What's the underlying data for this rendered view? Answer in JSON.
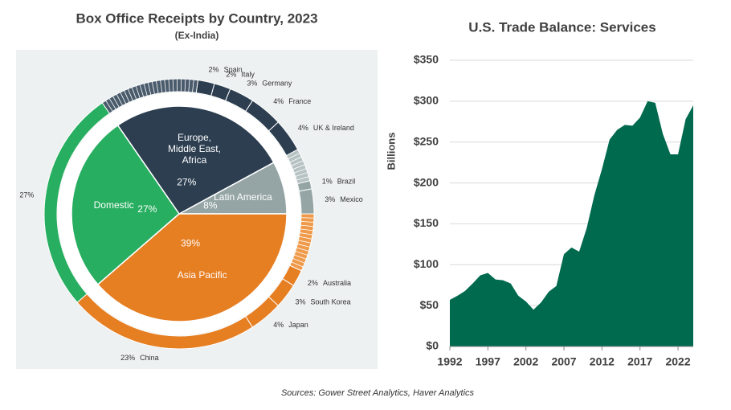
{
  "chart_data": [
    {
      "type": "sunburst",
      "title": "Box Office Receipts by Country, 2023",
      "subtitle": "(Ex-India)",
      "categories": [
        "Latin America",
        "Europe, Middle East, Africa",
        "Domestic",
        "Asia Pacific"
      ],
      "values": [
        8,
        27,
        27,
        39
      ],
      "value_labels": [
        "8%",
        "27%",
        "27%",
        "39%"
      ],
      "colors": [
        "#95a5a6",
        "#2c3e50",
        "#27ae60",
        "#e67e22"
      ],
      "outer": {
        "categories": [
          "Mexico",
          "Brazil",
          null,
          "UK & Ireland",
          "France",
          "Germany",
          "Italy",
          "Spain",
          null,
          null,
          "China",
          "Japan",
          "South Korea",
          "Australia",
          null
        ],
        "values": [
          3,
          1,
          4,
          4,
          4,
          3,
          2,
          2,
          12,
          27,
          23,
          4,
          3,
          2,
          7
        ],
        "value_labels": [
          "3%",
          "1%",
          null,
          "4%",
          "4%",
          "3%",
          "2%",
          "2%",
          null,
          "27%",
          "23%",
          "4%",
          "3%",
          "2%",
          null
        ],
        "colors": [
          "#95a5a6",
          "#95a5a6",
          "#b7c2c3",
          "#2c3e50",
          "#2c3e50",
          "#2c3e50",
          "#2c3e50",
          "#2c3e50",
          "#4a5b6c",
          "#27ae60",
          "#e67e22",
          "#e67e22",
          "#e67e22",
          "#e67e22",
          "#ef9a4a"
        ]
      }
    },
    {
      "type": "area",
      "title": "U.S. Trade Balance: Services",
      "y_label": "Billions",
      "color": "#006a4e",
      "x": [
        1992,
        1993,
        1994,
        1995,
        1996,
        1997,
        1998,
        1999,
        2000,
        2001,
        2002,
        2003,
        2004,
        2005,
        2006,
        2007,
        2008,
        2009,
        2010,
        2011,
        2012,
        2013,
        2014,
        2015,
        2016,
        2017,
        2018,
        2019,
        2020,
        2021,
        2022,
        2023,
        2024
      ],
      "values": [
        57,
        62,
        68,
        77,
        87,
        90,
        82,
        81,
        77,
        62,
        55,
        45,
        54,
        67,
        74,
        113,
        121,
        116,
        145,
        185,
        217,
        253,
        265,
        271,
        270,
        280,
        300,
        298,
        260,
        235,
        235,
        278,
        295
      ],
      "xlim": [
        1992,
        2024
      ],
      "xticks": [
        1992,
        1997,
        2002,
        2007,
        2012,
        2017,
        2022
      ],
      "ylim": [
        0,
        350
      ],
      "yticks": [
        {
          "value": 0,
          "label": "$0"
        },
        {
          "value": 50,
          "label": "$50"
        },
        {
          "value": 100,
          "label": "$100"
        },
        {
          "value": 150,
          "label": "$150"
        },
        {
          "value": 200,
          "label": "$200"
        },
        {
          "value": 250,
          "label": "$250"
        },
        {
          "value": 300,
          "label": "$300"
        },
        {
          "value": 350,
          "label": "$350"
        }
      ],
      "grid": true
    }
  ],
  "source": "Sources: Gower Street Analytics, Haver Analytics"
}
